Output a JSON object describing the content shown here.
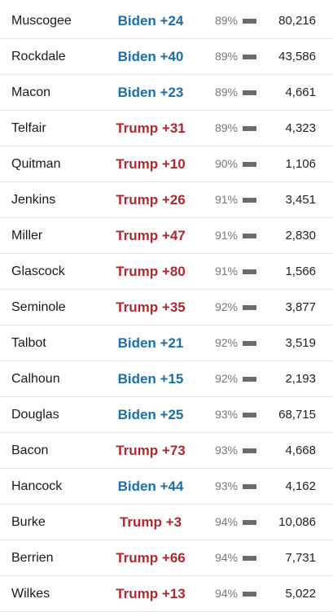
{
  "counties": [
    {
      "name": "Muscogee",
      "margin": "Biden +24",
      "party": "dem",
      "reporting": "89%",
      "votes": "80,216"
    },
    {
      "name": "Rockdale",
      "margin": "Biden +40",
      "party": "dem",
      "reporting": "89%",
      "votes": "43,586"
    },
    {
      "name": "Macon",
      "margin": "Biden +23",
      "party": "dem",
      "reporting": "89%",
      "votes": "4,661"
    },
    {
      "name": "Telfair",
      "margin": "Trump +31",
      "party": "rep",
      "reporting": "89%",
      "votes": "4,323"
    },
    {
      "name": "Quitman",
      "margin": "Trump +10",
      "party": "rep",
      "reporting": "90%",
      "votes": "1,106"
    },
    {
      "name": "Jenkins",
      "margin": "Trump +26",
      "party": "rep",
      "reporting": "91%",
      "votes": "3,451"
    },
    {
      "name": "Miller",
      "margin": "Trump +47",
      "party": "rep",
      "reporting": "91%",
      "votes": "2,830"
    },
    {
      "name": "Glascock",
      "margin": "Trump +80",
      "party": "rep",
      "reporting": "91%",
      "votes": "1,566"
    },
    {
      "name": "Seminole",
      "margin": "Trump +35",
      "party": "rep",
      "reporting": "92%",
      "votes": "3,877"
    },
    {
      "name": "Talbot",
      "margin": "Biden +21",
      "party": "dem",
      "reporting": "92%",
      "votes": "3,519"
    },
    {
      "name": "Calhoun",
      "margin": "Biden +15",
      "party": "dem",
      "reporting": "92%",
      "votes": "2,193"
    },
    {
      "name": "Douglas",
      "margin": "Biden +25",
      "party": "dem",
      "reporting": "93%",
      "votes": "68,715"
    },
    {
      "name": "Bacon",
      "margin": "Trump +73",
      "party": "rep",
      "reporting": "93%",
      "votes": "4,668"
    },
    {
      "name": "Hancock",
      "margin": "Biden +44",
      "party": "dem",
      "reporting": "93%",
      "votes": "4,162"
    },
    {
      "name": "Burke",
      "margin": "Trump +3",
      "party": "rep",
      "reporting": "94%",
      "votes": "10,086"
    },
    {
      "name": "Berrien",
      "margin": "Trump +66",
      "party": "rep",
      "reporting": "94%",
      "votes": "7,731"
    },
    {
      "name": "Wilkes",
      "margin": "Trump +13",
      "party": "rep",
      "reporting": "94%",
      "votes": "5,022"
    }
  ],
  "colors": {
    "dem": "#1b6ea6",
    "rep": "#b0272e",
    "reporting_bar": "#6b6b6b"
  }
}
